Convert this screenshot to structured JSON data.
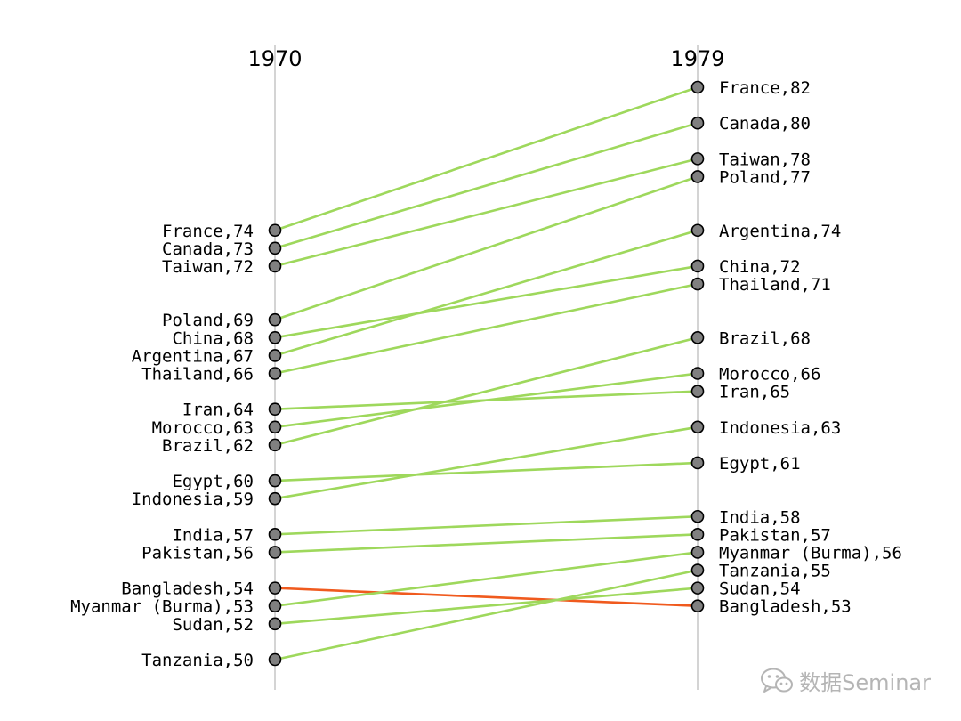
{
  "chart_data": {
    "type": "slope",
    "x": [
      "1970",
      "1979"
    ],
    "ylim": [
      49,
      83
    ],
    "colors": {
      "up": "#9ed85c",
      "down": "#f05a1e",
      "axis": "#aaaaaa",
      "point": "#808080"
    },
    "items": [
      {
        "country": "France",
        "v1970": 74,
        "v1979": 82,
        "label1970": "France,74",
        "label1979": "France,82"
      },
      {
        "country": "Canada",
        "v1970": 73,
        "v1979": 80,
        "label1970": "Canada,73",
        "label1979": "Canada,80"
      },
      {
        "country": "Taiwan",
        "v1970": 72,
        "v1979": 78,
        "label1970": "Taiwan,72",
        "label1979": "Taiwan,78"
      },
      {
        "country": "Poland",
        "v1970": 69,
        "v1979": 77,
        "label1970": "Poland,69",
        "label1979": "Poland,77"
      },
      {
        "country": "China",
        "v1970": 68,
        "v1979": 72,
        "label1970": "China,68",
        "label1979": "China,72"
      },
      {
        "country": "Argentina",
        "v1970": 67,
        "v1979": 74,
        "label1970": "Argentina,67",
        "label1979": "Argentina,74"
      },
      {
        "country": "Thailand",
        "v1970": 66,
        "v1979": 71,
        "label1970": "Thailand,66",
        "label1979": "Thailand,71"
      },
      {
        "country": "Iran",
        "v1970": 64,
        "v1979": 65,
        "label1970": "Iran,64",
        "label1979": "Iran,65"
      },
      {
        "country": "Morocco",
        "v1970": 63,
        "v1979": 66,
        "label1970": "Morocco,63",
        "label1979": "Morocco,66"
      },
      {
        "country": "Brazil",
        "v1970": 62,
        "v1979": 68,
        "label1970": "Brazil,62",
        "label1979": "Brazil,68"
      },
      {
        "country": "Egypt",
        "v1970": 60,
        "v1979": 61,
        "label1970": "Egypt,60",
        "label1979": "Egypt,61"
      },
      {
        "country": "Indonesia",
        "v1970": 59,
        "v1979": 63,
        "label1970": "Indonesia,59",
        "label1979": "Indonesia,63"
      },
      {
        "country": "India",
        "v1970": 57,
        "v1979": 58,
        "label1970": "India,57",
        "label1979": "India,58"
      },
      {
        "country": "Pakistan",
        "v1970": 56,
        "v1979": 57,
        "label1970": "Pakistan,56",
        "label1979": "Pakistan,57"
      },
      {
        "country": "Bangladesh",
        "v1970": 54,
        "v1979": 53,
        "label1970": "Bangladesh,54",
        "label1979": "Bangladesh,53"
      },
      {
        "country": "Myanmar (Burma)",
        "v1970": 53,
        "v1979": 56,
        "label1970": "Myanmar (Burma),53",
        "label1979": "Myanmar (Burma),56"
      },
      {
        "country": "Sudan",
        "v1970": 52,
        "v1979": 54,
        "label1970": "Sudan,52",
        "label1979": "Sudan,54"
      },
      {
        "country": "Tanzania",
        "v1970": 50,
        "v1979": 55,
        "label1970": "Tanzania,50",
        "label1979": "Tanzania,55"
      }
    ]
  },
  "watermark": {
    "text": "数据Seminar",
    "icon": "wechat-icon"
  }
}
